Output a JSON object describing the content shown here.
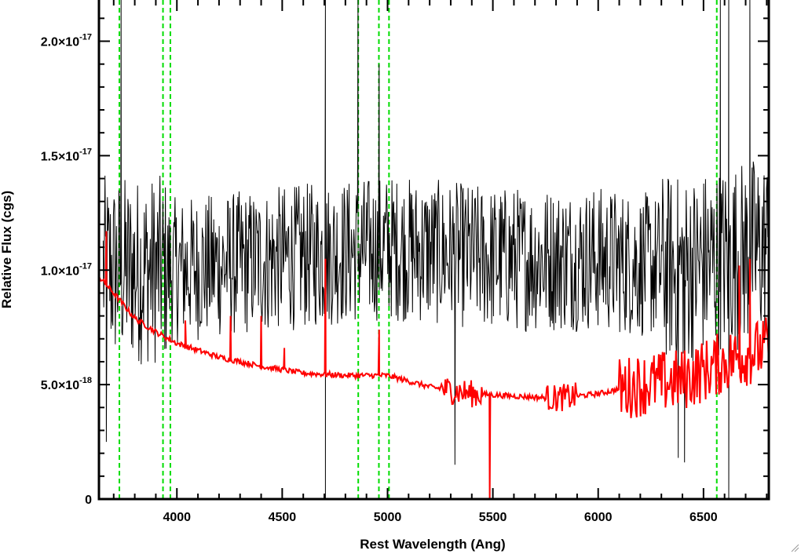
{
  "chart_data": {
    "type": "line",
    "title": "",
    "xlabel": "Rest Wavelength (Ang)",
    "ylabel": "Relative Flux (cgs)",
    "xlim": [
      3630,
      6810
    ],
    "ylim": [
      0,
      2.18e-17
    ],
    "x_ticks": [
      {
        "value": 4000,
        "label": "4000"
      },
      {
        "value": 4500,
        "label": "4500"
      },
      {
        "value": 5000,
        "label": "5000"
      },
      {
        "value": 5500,
        "label": "5500"
      },
      {
        "value": 6000,
        "label": "6000"
      },
      {
        "value": 6500,
        "label": "6500"
      }
    ],
    "y_ticks": [
      {
        "value": 0,
        "label": "0",
        "mantissa": "0",
        "exponent": ""
      },
      {
        "value": 5e-18,
        "label": "5.0×10^-18",
        "mantissa": "5.0×10",
        "exponent": "-18"
      },
      {
        "value": 1e-17,
        "label": "1.0×10^-17",
        "mantissa": "1.0×10",
        "exponent": "-17"
      },
      {
        "value": 1.5e-17,
        "label": "1.5×10^-17",
        "mantissa": "1.5×10",
        "exponent": "-17"
      },
      {
        "value": 2e-17,
        "label": "2.0×10^-17",
        "mantissa": "2.0×10",
        "exponent": "-17"
      }
    ],
    "x_minor_step": 100,
    "y_minor_step": 1e-18,
    "grid": false,
    "legend": "none",
    "series": [
      {
        "color": "#000000",
        "style": "noisy observed spectrum",
        "baseline": {
          "x": [
            3650,
            4000,
            4500,
            5000,
            5500,
            6000,
            6400,
            6800
          ],
          "y": [
            1e-17,
            1e-17,
            1.05e-17,
            1.1e-17,
            1.05e-17,
            1.05e-17,
            1e-17,
            1.1e-17
          ]
        },
        "noise_amplitude": 3.2e-18,
        "spikes": [
          {
            "x": 3735,
            "y": 2.18e-17
          },
          {
            "x": 4705,
            "y": 2.18e-17
          },
          {
            "x": 4860,
            "y": 2.18e-17
          },
          {
            "x": 4960,
            "y": 1.9e-17
          },
          {
            "x": 6580,
            "y": 2.18e-17
          },
          {
            "x": 6620,
            "y": 2.18e-17
          },
          {
            "x": 6720,
            "y": 2.18e-17
          }
        ],
        "dips": [
          {
            "x": 3665,
            "y": 2.5e-18
          },
          {
            "x": 4705,
            "y": 0
          },
          {
            "x": 5320,
            "y": 1.5e-18
          },
          {
            "x": 6380,
            "y": 1.8e-18
          },
          {
            "x": 6410,
            "y": 1.6e-18
          },
          {
            "x": 6620,
            "y": 0
          }
        ]
      },
      {
        "color": "#ff0000",
        "style": "continuum model",
        "x": [
          3630,
          3700,
          3800,
          3900,
          4000,
          4200,
          4400,
          4600,
          4800,
          5000,
          5200,
          5400,
          5600,
          5800,
          6000,
          6200,
          6400,
          6600,
          6800
        ],
        "y": [
          9.7e-18,
          9e-18,
          7.9e-18,
          7.3e-18,
          6.8e-18,
          6.2e-18,
          5.8e-18,
          5.5e-18,
          5.4e-18,
          5.4e-18,
          4.9e-18,
          4.6e-18,
          4.5e-18,
          4.4e-18,
          4.6e-18,
          5e-18,
          5.2e-18,
          6e-18,
          6.6e-18
        ],
        "spikes": [
          {
            "x": 3665,
            "y": 1.17e-17
          },
          {
            "x": 4040,
            "y": 7.8e-18
          },
          {
            "x": 4255,
            "y": 8e-18
          },
          {
            "x": 4400,
            "y": 8e-18
          },
          {
            "x": 4510,
            "y": 6.6e-18
          },
          {
            "x": 4705,
            "y": 1.05e-17
          },
          {
            "x": 4960,
            "y": 7.4e-18
          },
          {
            "x": 6670,
            "y": 1.02e-17
          },
          {
            "x": 6720,
            "y": 1.05e-17
          }
        ],
        "dips": [
          {
            "x": 5485,
            "y": 0
          }
        ]
      }
    ],
    "reference_lines": {
      "color": "#00dd00",
      "style": "dashed",
      "x": [
        3727,
        3934,
        3969,
        4861,
        4959,
        5007,
        6563
      ]
    }
  }
}
